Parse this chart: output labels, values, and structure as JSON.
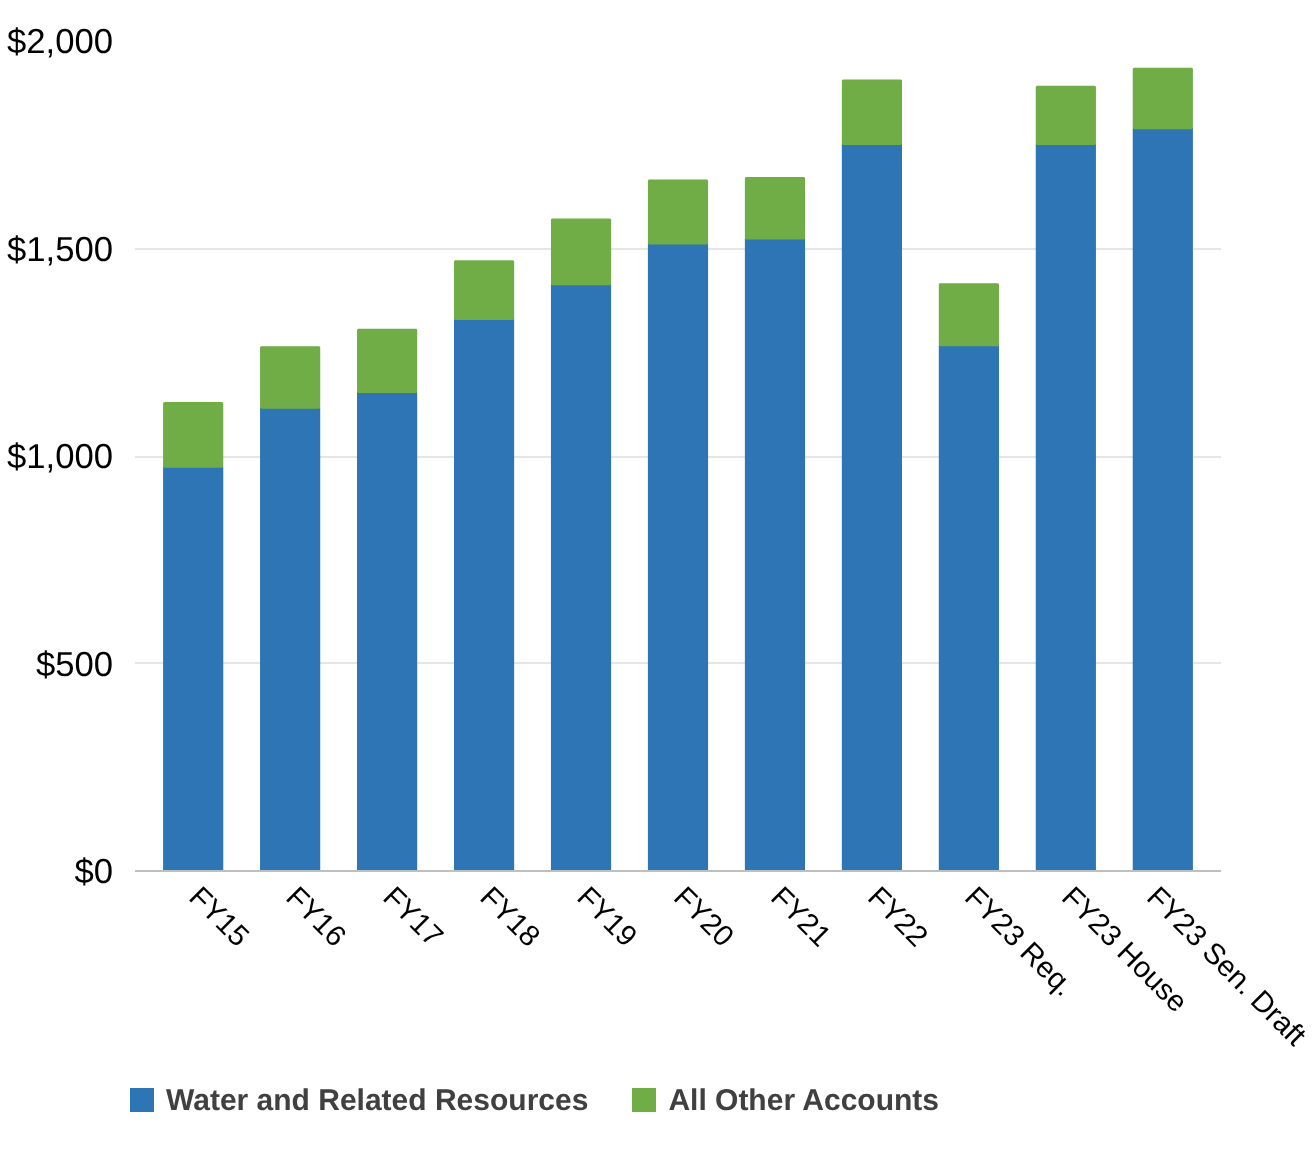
{
  "chart_data": {
    "type": "bar",
    "stacked": true,
    "categories": [
      "FY15",
      "FY16",
      "FY17",
      "FY18",
      "FY19",
      "FY20",
      "FY21",
      "FY22",
      "FY23 Req.",
      "FY23 House",
      "FY23 Sen. Draft"
    ],
    "series": [
      {
        "name": "Water and Related Resources",
        "color": "#2e75b6",
        "values": [
          974,
          1116,
          1154,
          1330,
          1414,
          1512,
          1524,
          1752,
          1267,
          1752,
          1790
        ]
      },
      {
        "name": "All Other Accounts",
        "color": "#70ad47",
        "values": [
          154,
          146,
          150,
          139,
          156,
          152,
          146,
          153,
          147,
          138,
          143
        ]
      }
    ],
    "ylim": [
      0,
      2000
    ],
    "yticks": [
      {
        "value": 0,
        "label": "$0"
      },
      {
        "value": 500,
        "label": "$500"
      },
      {
        "value": 1000,
        "label": "$1,000"
      },
      {
        "value": 1500,
        "label": "$1,500"
      },
      {
        "value": 2000,
        "label": "$2,000"
      }
    ],
    "grid": "y",
    "legend": "bottom"
  }
}
